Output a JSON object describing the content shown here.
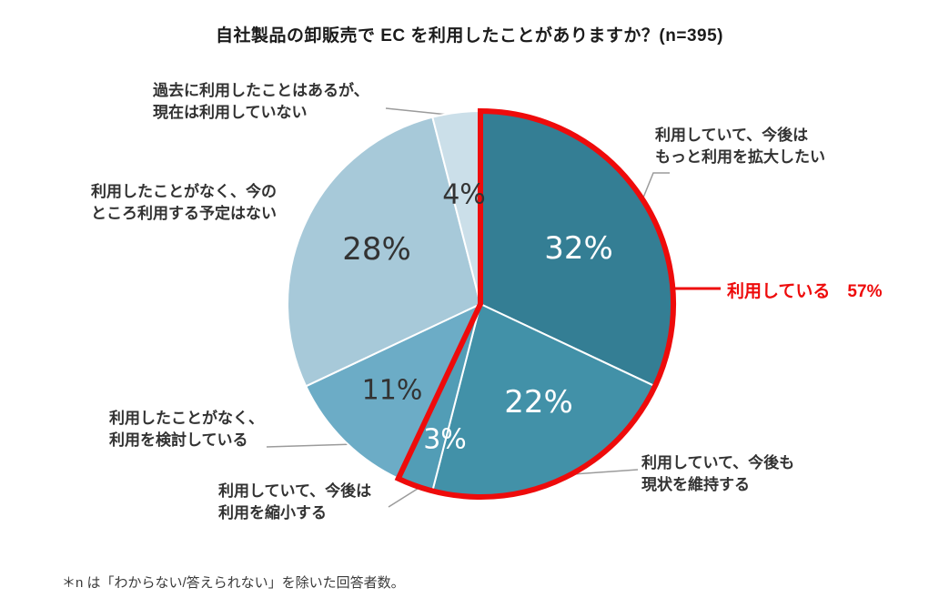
{
  "chart_data": {
    "type": "pie",
    "title": "自社製品の卸販売で EC を利用したことがありますか？(n=395)",
    "n": 395,
    "unit": "%",
    "direction": "clockwise",
    "start_angle_deg": 0,
    "categories": [
      "利用していて、今後はもっと利用を拡大したい",
      "利用していて、今後も現状を維持する",
      "利用していて、今後は利用を縮小する",
      "利用したことがなく、利用を検討している",
      "利用したことがなく、今のところ利用する予定はない",
      "過去に利用したことはあるが、現在は利用していない"
    ],
    "values": [
      32,
      22,
      3,
      11,
      28,
      4
    ],
    "colors": [
      "#347e94",
      "#4291a8",
      "#529db6",
      "#6cacc6",
      "#a7c9d9",
      "#cbdfe9"
    ],
    "slice_label_colors": [
      "#ffffff",
      "#ffffff",
      "#ffffff",
      "#333333",
      "#333333",
      "#333333"
    ],
    "highlight": {
      "label": "利用している　57%",
      "total_percent": 57,
      "covers_first_n_slices": 3,
      "color": "#ee0b0b"
    },
    "footnote": "＊n は「わからない/答えられない」を除いた回答者数。"
  },
  "callouts": {
    "expand": {
      "line1": "利用していて、今後は",
      "line2": "もっと利用を拡大したい"
    },
    "maintain": {
      "line1": "利用していて、今後も",
      "line2": "現状を維持する"
    },
    "shrink": {
      "line1": "利用していて、今後は",
      "line2": "利用を縮小する"
    },
    "considering": {
      "line1": "利用したことがなく、",
      "line2": "利用を検討している"
    },
    "no_plan": {
      "line1": "利用したことがなく、今の",
      "line2": "ところ利用する予定はない"
    },
    "past": {
      "line1": "過去に利用したことはあるが、",
      "line2": "現在は利用していない"
    }
  }
}
